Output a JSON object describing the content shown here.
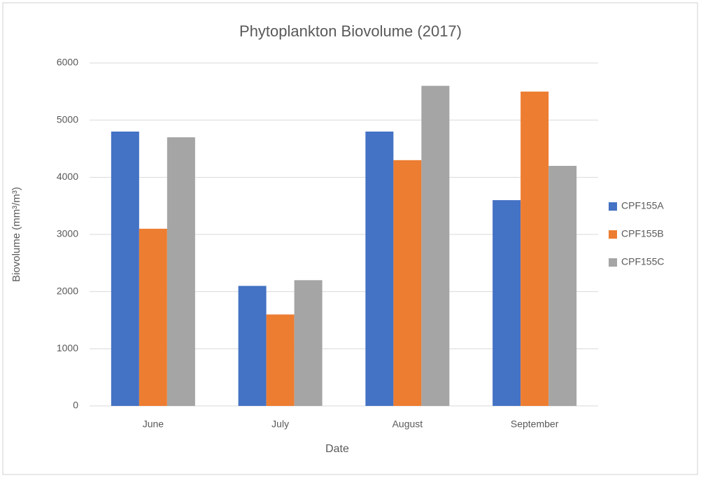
{
  "chart_data": {
    "type": "bar",
    "title": "Phytoplankton Biovolume (2017)",
    "x_label": "Date",
    "y_label": "Biovolume (mm³/m³)",
    "categories": [
      "June",
      "July",
      "August",
      "September"
    ],
    "series": [
      {
        "name": "CPF155A",
        "color": "#4472c4",
        "values": [
          4800,
          2100,
          4800,
          3600
        ]
      },
      {
        "name": "CPF155B",
        "color": "#ed7d31",
        "values": [
          3100,
          1600,
          4300,
          5500
        ]
      },
      {
        "name": "CPF155C",
        "color": "#a5a5a5",
        "values": [
          4700,
          2200,
          5600,
          4200
        ]
      }
    ],
    "ylim": [
      0,
      6000
    ],
    "yticks": [
      0,
      1000,
      2000,
      3000,
      4000,
      5000,
      6000
    ],
    "grid": true,
    "legend": "right"
  }
}
